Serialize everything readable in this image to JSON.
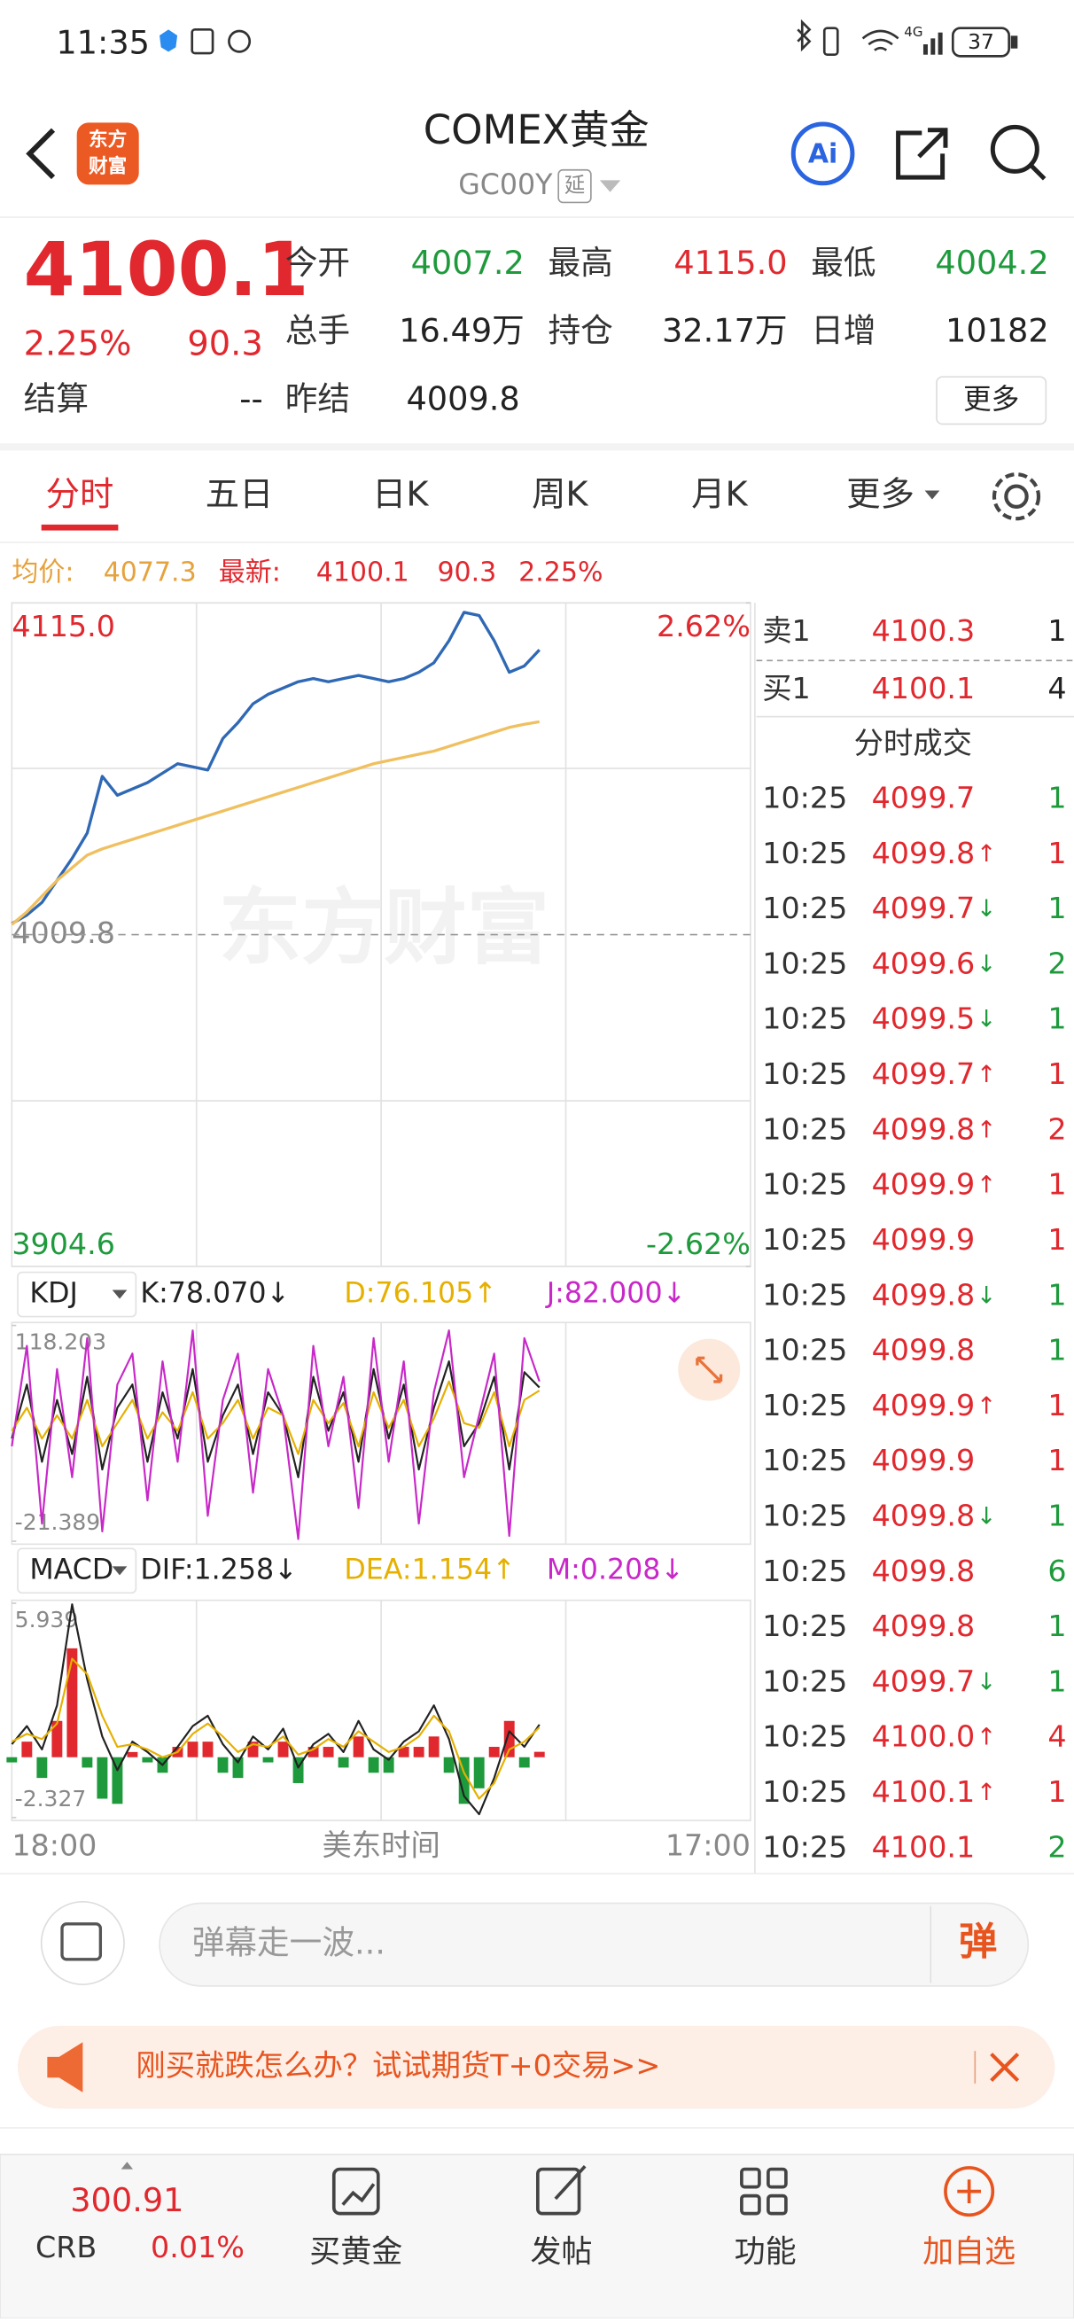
{
  "status_bar": {
    "time": "11:35",
    "network": "4G",
    "battery": "37"
  },
  "header": {
    "logo_lines": [
      "东方",
      "财富"
    ],
    "title": "COMEX黄金",
    "code": "GC00Y",
    "tag": "延"
  },
  "quote": {
    "price": "4100.1",
    "change_pct": "2.25%",
    "change": "90.3",
    "stats": [
      [
        {
          "label": "今开",
          "value": "4007.2",
          "color": "#1e9a3c"
        },
        {
          "label": "最高",
          "value": "4115.0",
          "color": "#e0282e"
        },
        {
          "label": "最低",
          "value": "4004.2",
          "color": "#1e9a3c"
        }
      ],
      [
        {
          "label": "总手",
          "value": "16.49万",
          "color": "#222222"
        },
        {
          "label": "持仓",
          "value": "32.17万",
          "color": "#222222"
        },
        {
          "label": "日增",
          "value": "10182",
          "color": "#222222"
        }
      ],
      [
        {
          "label": "结算",
          "value": "--",
          "color": "#222222"
        },
        {
          "label": "昨结",
          "value": "4009.8",
          "color": "#222222"
        }
      ]
    ],
    "more": "更多"
  },
  "tabs": [
    "分时",
    "五日",
    "日K",
    "周K",
    "月K",
    "更多"
  ],
  "chart_legend": {
    "avg_label": "均价:",
    "avg_value": "4077.3",
    "latest_label": "最新:",
    "latest_value": "4100.1",
    "change": "90.3",
    "pct": "2.25%"
  },
  "watermark": "东方财富",
  "chart_data": [
    {
      "type": "line",
      "ylim": [
        3904.6,
        4115.0
      ],
      "yticks": [
        {
          "value": 4115.0,
          "label": "4115.0"
        },
        4009.8,
        3904.6
      ],
      "y2lim": [
        -2.62,
        2.62
      ],
      "y2ticks": [
        {
          "value": 2.62,
          "label": "2.62%"
        },
        {
          "value": -2.62,
          "label": "-2.62%"
        }
      ],
      "x_labels": [
        "18:00",
        "17:00"
      ],
      "x_label": "美东时间",
      "series": [
        {
          "name": "最新:",
          "color": "#2f68b4",
          "values": [
            4013.3,
            4016,
            4020,
            4027,
            4034,
            4042,
            4060,
            4054,
            4056,
            4058,
            4061,
            4064,
            4063,
            4062,
            4072,
            4077,
            4083,
            4086,
            4088,
            4090,
            4091,
            4090,
            4091,
            4092,
            4091,
            4090,
            4091,
            4093,
            4096,
            4103,
            4112,
            4111,
            4103,
            4093,
            4095,
            4100.1,
            null,
            null,
            null,
            null,
            null,
            null,
            null,
            null,
            null,
            null,
            null,
            null,
            null,
            null
          ]
        },
        {
          "name": "均价:",
          "color": "#f0c060",
          "values": [
            4013,
            4017,
            4022,
            4027,
            4031,
            4035,
            4037,
            4038.5,
            4040,
            4041.5,
            4043,
            4044.5,
            4046,
            4047.5,
            4049,
            4050.5,
            4052,
            4053.5,
            4055,
            4056.5,
            4058,
            4059.5,
            4061,
            4062.5,
            4064,
            4065,
            4066,
            4067,
            4068,
            4069.5,
            4071,
            4072.5,
            4074,
            4075.5,
            4076.5,
            4077.3,
            null,
            null,
            null,
            null,
            null,
            null,
            null,
            null,
            null,
            null,
            null,
            null,
            null,
            null
          ]
        }
      ]
    },
    {
      "type": "line",
      "indicator": "KDJ",
      "ylim": [
        -21.389,
        118.203
      ],
      "yticks": [
        118.203,
        -21.389
      ],
      "series": [
        {
          "name": "K:78.070↓",
          "color": "#222222",
          "values": [
            45,
            80,
            30,
            70,
            35,
            85,
            25,
            65,
            80,
            30,
            75,
            45,
            90,
            30,
            60,
            80,
            35,
            75,
            60,
            20,
            85,
            50,
            75,
            30,
            90,
            45,
            80,
            25,
            65,
            95,
            40,
            55,
            85,
            25,
            88,
            78.07,
            null,
            null,
            null,
            null,
            null,
            null,
            null,
            null,
            null,
            null,
            null,
            null,
            null,
            null
          ]
        },
        {
          "name": "D:76.105↑",
          "color": "#e6b000",
          "values": [
            50,
            65,
            45,
            60,
            45,
            70,
            40,
            55,
            70,
            45,
            62,
            50,
            75,
            45,
            55,
            70,
            45,
            65,
            60,
            35,
            70,
            55,
            68,
            40,
            75,
            52,
            70,
            40,
            58,
            82,
            55,
            52,
            75,
            40,
            70,
            76.105,
            null,
            null,
            null,
            null,
            null,
            null,
            null,
            null,
            null,
            null,
            null,
            null,
            null,
            null
          ]
        },
        {
          "name": "J:82.000↓",
          "color": "#c828c8",
          "values": [
            40,
            105,
            -10,
            90,
            20,
            110,
            -15,
            80,
            100,
            5,
            95,
            30,
            115,
            -5,
            70,
            100,
            10,
            90,
            60,
            -20,
            105,
            40,
            85,
            0,
            110,
            30,
            95,
            -10,
            75,
            115,
            20,
            60,
            100,
            -18,
            110,
            82.0,
            null,
            null,
            null,
            null,
            null,
            null,
            null,
            null,
            null,
            null,
            null,
            null,
            null,
            null
          ]
        }
      ]
    },
    {
      "type": "combo",
      "indicator": "MACD",
      "ylim": [
        -2.327,
        5.939
      ],
      "yticks": [
        5.939,
        -2.327
      ],
      "series": [
        {
          "name": "M:0.208↓",
          "kind": "bar",
          "color": "#c828c8",
          "up_color": "#e0282e",
          "down_color": "#1e9a3c",
          "values": [
            -0.2,
            0.6,
            -0.8,
            1.4,
            4.2,
            -0.4,
            -1.6,
            -1.8,
            0.2,
            -0.2,
            -0.6,
            0.4,
            0.6,
            0.6,
            -0.6,
            -0.8,
            0.6,
            -0.2,
            0.6,
            -1.0,
            0.4,
            0.4,
            -0.4,
            0.8,
            -0.6,
            -0.6,
            0.4,
            0.4,
            0.8,
            -0.6,
            -1.8,
            -1.2,
            0.4,
            1.4,
            -0.4,
            0.208,
            null,
            null,
            null,
            null,
            null,
            null,
            null,
            null,
            null,
            null,
            null,
            null,
            null,
            null
          ]
        },
        {
          "name": "DIF:1.258↓",
          "color": "#222222",
          "values": [
            0.5,
            1.2,
            0.3,
            2.0,
            5.9,
            3.0,
            0.8,
            -0.5,
            0.6,
            0.2,
            -0.3,
            0.4,
            1.2,
            1.6,
            0.5,
            -0.2,
            0.8,
            0.3,
            1.1,
            -0.4,
            0.5,
            0.9,
            0.2,
            1.4,
            0.3,
            -0.1,
            0.6,
            1.0,
            2.0,
            0.7,
            -1.5,
            -2.2,
            -0.8,
            1.0,
            0.4,
            1.258,
            null,
            null,
            null,
            null,
            null,
            null,
            null,
            null,
            null,
            null,
            null,
            null,
            null,
            null
          ]
        },
        {
          "name": "DEA:1.154↑",
          "color": "#e6b000",
          "values": [
            0.6,
            0.9,
            0.7,
            1.3,
            3.8,
            3.2,
            1.6,
            0.4,
            0.5,
            0.3,
            0.0,
            0.2,
            0.9,
            1.3,
            0.8,
            0.2,
            0.5,
            0.4,
            0.8,
            0.1,
            0.3,
            0.7,
            0.4,
            1.0,
            0.6,
            0.2,
            0.4,
            0.8,
            1.6,
            1.0,
            -0.6,
            -1.6,
            -1.0,
            0.3,
            0.6,
            1.154,
            null,
            null,
            null,
            null,
            null,
            null,
            null,
            null,
            null,
            null,
            null,
            null,
            null,
            null
          ]
        }
      ]
    }
  ],
  "order_book": {
    "price_color": "#e0282e",
    "ask": {
      "label": "卖1",
      "price": "4100.3",
      "volume": 1
    },
    "bid": {
      "label": "买1",
      "price": "4100.1",
      "volume": 4
    },
    "trades_title": "分时成交",
    "trades": [
      {
        "time": "10:25",
        "price": "4099.7",
        "volume": 1,
        "color": "#1e9a3c"
      },
      {
        "time": "10:25",
        "price": "4099.8",
        "arrow": "↑",
        "volume": 1,
        "color": "#e0282e"
      },
      {
        "time": "10:25",
        "price": "4099.7",
        "arrow": "↓",
        "volume": 1,
        "color": "#1e9a3c"
      },
      {
        "time": "10:25",
        "price": "4099.6",
        "arrow": "↓",
        "volume": 2,
        "color": "#1e9a3c"
      },
      {
        "time": "10:25",
        "price": "4099.5",
        "arrow": "↓",
        "volume": 1,
        "color": "#1e9a3c"
      },
      {
        "time": "10:25",
        "price": "4099.7",
        "arrow": "↑",
        "volume": 1,
        "color": "#e0282e"
      },
      {
        "time": "10:25",
        "price": "4099.8",
        "arrow": "↑",
        "volume": 2,
        "color": "#e0282e"
      },
      {
        "time": "10:25",
        "price": "4099.9",
        "arrow": "↑",
        "volume": 1,
        "color": "#e0282e"
      },
      {
        "time": "10:25",
        "price": "4099.9",
        "volume": 1,
        "color": "#e0282e"
      },
      {
        "time": "10:25",
        "price": "4099.8",
        "arrow": "↓",
        "volume": 1,
        "color": "#1e9a3c"
      },
      {
        "time": "10:25",
        "price": "4099.8",
        "volume": 1,
        "color": "#1e9a3c"
      },
      {
        "time": "10:25",
        "price": "4099.9",
        "arrow": "↑",
        "volume": 1,
        "color": "#e0282e"
      },
      {
        "time": "10:25",
        "price": "4099.9",
        "volume": 1,
        "color": "#e0282e"
      },
      {
        "time": "10:25",
        "price": "4099.8",
        "arrow": "↓",
        "volume": 1,
        "color": "#1e9a3c"
      },
      {
        "time": "10:25",
        "price": "4099.8",
        "volume": 6,
        "color": "#1e9a3c"
      },
      {
        "time": "10:25",
        "price": "4099.8",
        "volume": 1,
        "color": "#1e9a3c"
      },
      {
        "time": "10:25",
        "price": "4099.7",
        "arrow": "↓",
        "volume": 1,
        "color": "#1e9a3c"
      },
      {
        "time": "10:25",
        "price": "4100.0",
        "arrow": "↑",
        "volume": 4,
        "color": "#e0282e"
      },
      {
        "time": "10:25",
        "price": "4100.1",
        "arrow": "↑",
        "volume": 1,
        "color": "#e0282e"
      },
      {
        "time": "10:25",
        "price": "4100.1",
        "volume": 2,
        "color": "#1e9a3c"
      }
    ]
  },
  "comment": {
    "placeholder": "弹幕走一波...",
    "button": "弹"
  },
  "banner": {
    "text": "刚买就跌怎么办？试试期货T+0交易>>"
  },
  "bottom_nav": {
    "index": {
      "value": "300.91",
      "name": "CRB",
      "change": "0.01%"
    },
    "items": [
      "买黄金",
      "发帖",
      "功能",
      "加自选"
    ]
  }
}
